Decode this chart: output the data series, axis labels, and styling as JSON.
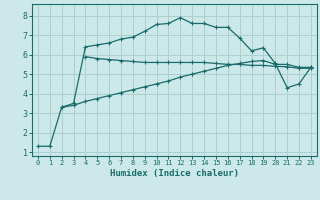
{
  "xlabel": "Humidex (Indice chaleur)",
  "xlim": [
    -0.5,
    23.5
  ],
  "ylim": [
    0.8,
    8.6
  ],
  "yticks": [
    1,
    2,
    3,
    4,
    5,
    6,
    7,
    8
  ],
  "xticks": [
    0,
    1,
    2,
    3,
    4,
    5,
    6,
    7,
    8,
    9,
    10,
    11,
    12,
    13,
    14,
    15,
    16,
    17,
    18,
    19,
    20,
    21,
    22,
    23
  ],
  "background_color": "#cce8e8",
  "grid_color": "#aad0d0",
  "line_color": "#1a6b6b",
  "line1_x": [
    0,
    1,
    2,
    3,
    4,
    5,
    6,
    7,
    8,
    9,
    10,
    11,
    12,
    13,
    14,
    15,
    16,
    17,
    18,
    19,
    20,
    21,
    22,
    23
  ],
  "line1_y": [
    1.3,
    1.3,
    3.3,
    3.5,
    6.4,
    6.5,
    6.6,
    6.8,
    6.9,
    7.2,
    7.55,
    7.6,
    7.9,
    7.6,
    7.6,
    7.4,
    7.4,
    6.85,
    6.2,
    6.35,
    5.55,
    4.3,
    4.5,
    5.35
  ],
  "line2_x": [
    2,
    3,
    4,
    5,
    6,
    7,
    8,
    9,
    10,
    11,
    12,
    13,
    14,
    15,
    16,
    17,
    18,
    19,
    20,
    21,
    22,
    23
  ],
  "line2_y": [
    3.3,
    3.4,
    3.6,
    3.75,
    3.9,
    4.05,
    4.2,
    4.35,
    4.5,
    4.65,
    4.85,
    5.0,
    5.15,
    5.3,
    5.45,
    5.55,
    5.65,
    5.7,
    5.5,
    5.5,
    5.35,
    5.35
  ],
  "line3_x": [
    4,
    5,
    6,
    7,
    8,
    9,
    10,
    11,
    12,
    13,
    14,
    15,
    16,
    17,
    18,
    19,
    20,
    21,
    22,
    23
  ],
  "line3_y": [
    5.9,
    5.8,
    5.75,
    5.7,
    5.65,
    5.6,
    5.6,
    5.6,
    5.6,
    5.6,
    5.6,
    5.55,
    5.5,
    5.5,
    5.45,
    5.45,
    5.4,
    5.38,
    5.3,
    5.3
  ]
}
